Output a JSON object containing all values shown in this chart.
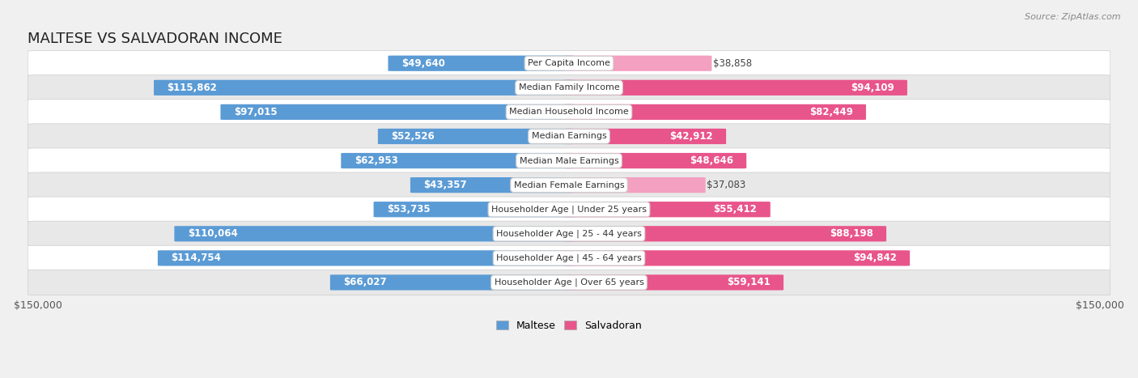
{
  "title": "MALTESE VS SALVADORAN INCOME",
  "source": "Source: ZipAtlas.com",
  "categories": [
    "Per Capita Income",
    "Median Family Income",
    "Median Household Income",
    "Median Earnings",
    "Median Male Earnings",
    "Median Female Earnings",
    "Householder Age | Under 25 years",
    "Householder Age | 25 - 44 years",
    "Householder Age | 45 - 64 years",
    "Householder Age | Over 65 years"
  ],
  "maltese_values": [
    49640,
    115862,
    97015,
    52526,
    62953,
    43357,
    53735,
    110064,
    114754,
    66027
  ],
  "salvadoran_values": [
    38858,
    94109,
    82449,
    42912,
    48646,
    37083,
    55412,
    88198,
    94842,
    59141
  ],
  "maltese_labels": [
    "$49,640",
    "$115,862",
    "$97,015",
    "$52,526",
    "$62,953",
    "$43,357",
    "$53,735",
    "$110,064",
    "$114,754",
    "$66,027"
  ],
  "salvadoran_labels": [
    "$38,858",
    "$94,109",
    "$82,449",
    "$42,912",
    "$48,646",
    "$37,083",
    "$55,412",
    "$88,198",
    "$94,842",
    "$59,141"
  ],
  "max_value": 150000,
  "maltese_color_light": "#a8c8e8",
  "maltese_color_dark": "#5b9bd5",
  "salvadoran_color_light": "#f4a0c0",
  "salvadoran_color_dark": "#e8558a",
  "bar_height": 0.62,
  "bg_color": "#f0f0f0",
  "row_bg_white": "#ffffff",
  "row_bg_gray": "#e8e8e8",
  "title_fontsize": 13,
  "label_fontsize": 8.5,
  "inside_threshold": 0.28
}
